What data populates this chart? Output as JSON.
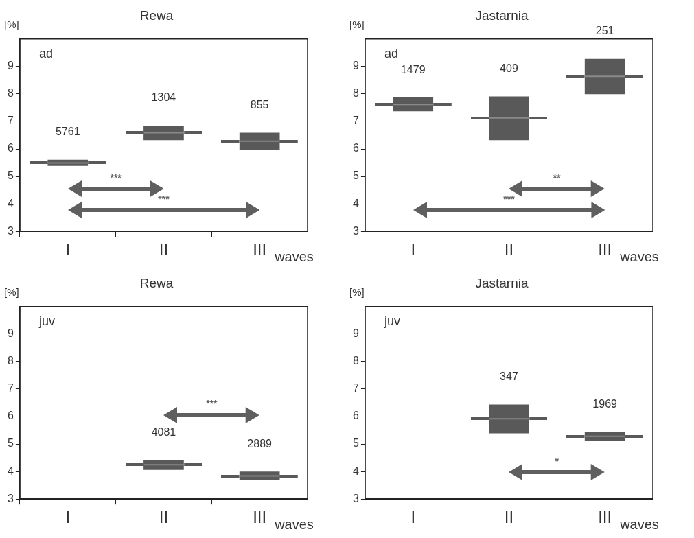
{
  "chart_data": [
    {
      "type": "box",
      "title": "Rewa",
      "xlabel": "waves",
      "ylabel": "[%]",
      "categories": [
        "I",
        "II",
        "III"
      ],
      "ylim": [
        3,
        10
      ],
      "yticks": [
        3,
        4,
        5,
        6,
        7,
        8,
        9
      ],
      "grid": false,
      "series": [
        {
          "color": "#595959",
          "boxes": [
            {
              "low": 5.38,
              "q1": 5.38,
              "median": 5.49,
              "q3": 5.61,
              "high": 5.61
            },
            {
              "low": 6.32,
              "q1": 6.32,
              "median": 6.59,
              "q3": 6.85,
              "high": 6.85
            },
            {
              "low": 5.96,
              "q1": 5.96,
              "median": 6.28,
              "q3": 6.59,
              "high": 6.59
            }
          ]
        }
      ],
      "annotations": [
        "ad",
        "5761",
        "1304",
        "855",
        "***",
        "***"
      ]
    },
    {
      "type": "box",
      "title": "Jastarnia",
      "xlabel": "waves",
      "ylabel": "[%]",
      "categories": [
        "I",
        "II",
        "III"
      ],
      "ylim": [
        3,
        10
      ],
      "yticks": [
        3,
        4,
        5,
        6,
        7,
        8,
        9
      ],
      "grid": false,
      "series": [
        {
          "color": "#595959",
          "boxes": [
            {
              "low": 7.37,
              "q1": 7.37,
              "median": 7.62,
              "q3": 7.87,
              "high": 7.87
            },
            {
              "low": 6.32,
              "q1": 6.32,
              "median": 7.13,
              "q3": 7.91,
              "high": 7.91
            },
            {
              "low": 7.99,
              "q1": 7.99,
              "median": 8.64,
              "q3": 9.28,
              "high": 9.28
            }
          ]
        }
      ],
      "annotations": [
        "ad",
        "1479",
        "409",
        "251",
        "**",
        "***"
      ]
    },
    {
      "type": "box",
      "title": "Rewa",
      "xlabel": "waves",
      "ylabel": "[%]",
      "categories": [
        "I",
        "II",
        "III"
      ],
      "ylim": [
        3,
        10
      ],
      "yticks": [
        3,
        4,
        5,
        6,
        7,
        8,
        9
      ],
      "grid": false,
      "series": [
        {
          "color": "#595959",
          "boxes": [
            null,
            {
              "low": 4.06,
              "q1": 4.06,
              "median": 4.25,
              "q3": 4.41,
              "high": 4.41
            },
            {
              "low": 3.68,
              "q1": 3.68,
              "median": 3.84,
              "q3": 4.0,
              "high": 4.0
            }
          ]
        }
      ],
      "annotations": [
        "juv",
        "4081",
        "2889",
        "***"
      ]
    },
    {
      "type": "box",
      "title": "Jastarnia",
      "xlabel": "waves",
      "ylabel": "[%]",
      "categories": [
        "I",
        "II",
        "III"
      ],
      "ylim": [
        3,
        10
      ],
      "yticks": [
        3,
        4,
        5,
        6,
        7,
        8,
        9
      ],
      "grid": false,
      "series": [
        {
          "color": "#595959",
          "boxes": [
            null,
            {
              "low": 5.39,
              "q1": 5.39,
              "median": 5.92,
              "q3": 6.44,
              "high": 6.44
            },
            {
              "low": 5.1,
              "q1": 5.1,
              "median": 5.28,
              "q3": 5.43,
              "high": 5.43
            }
          ]
        }
      ],
      "annotations": [
        "juv",
        "347",
        "1969",
        "*"
      ]
    }
  ]
}
